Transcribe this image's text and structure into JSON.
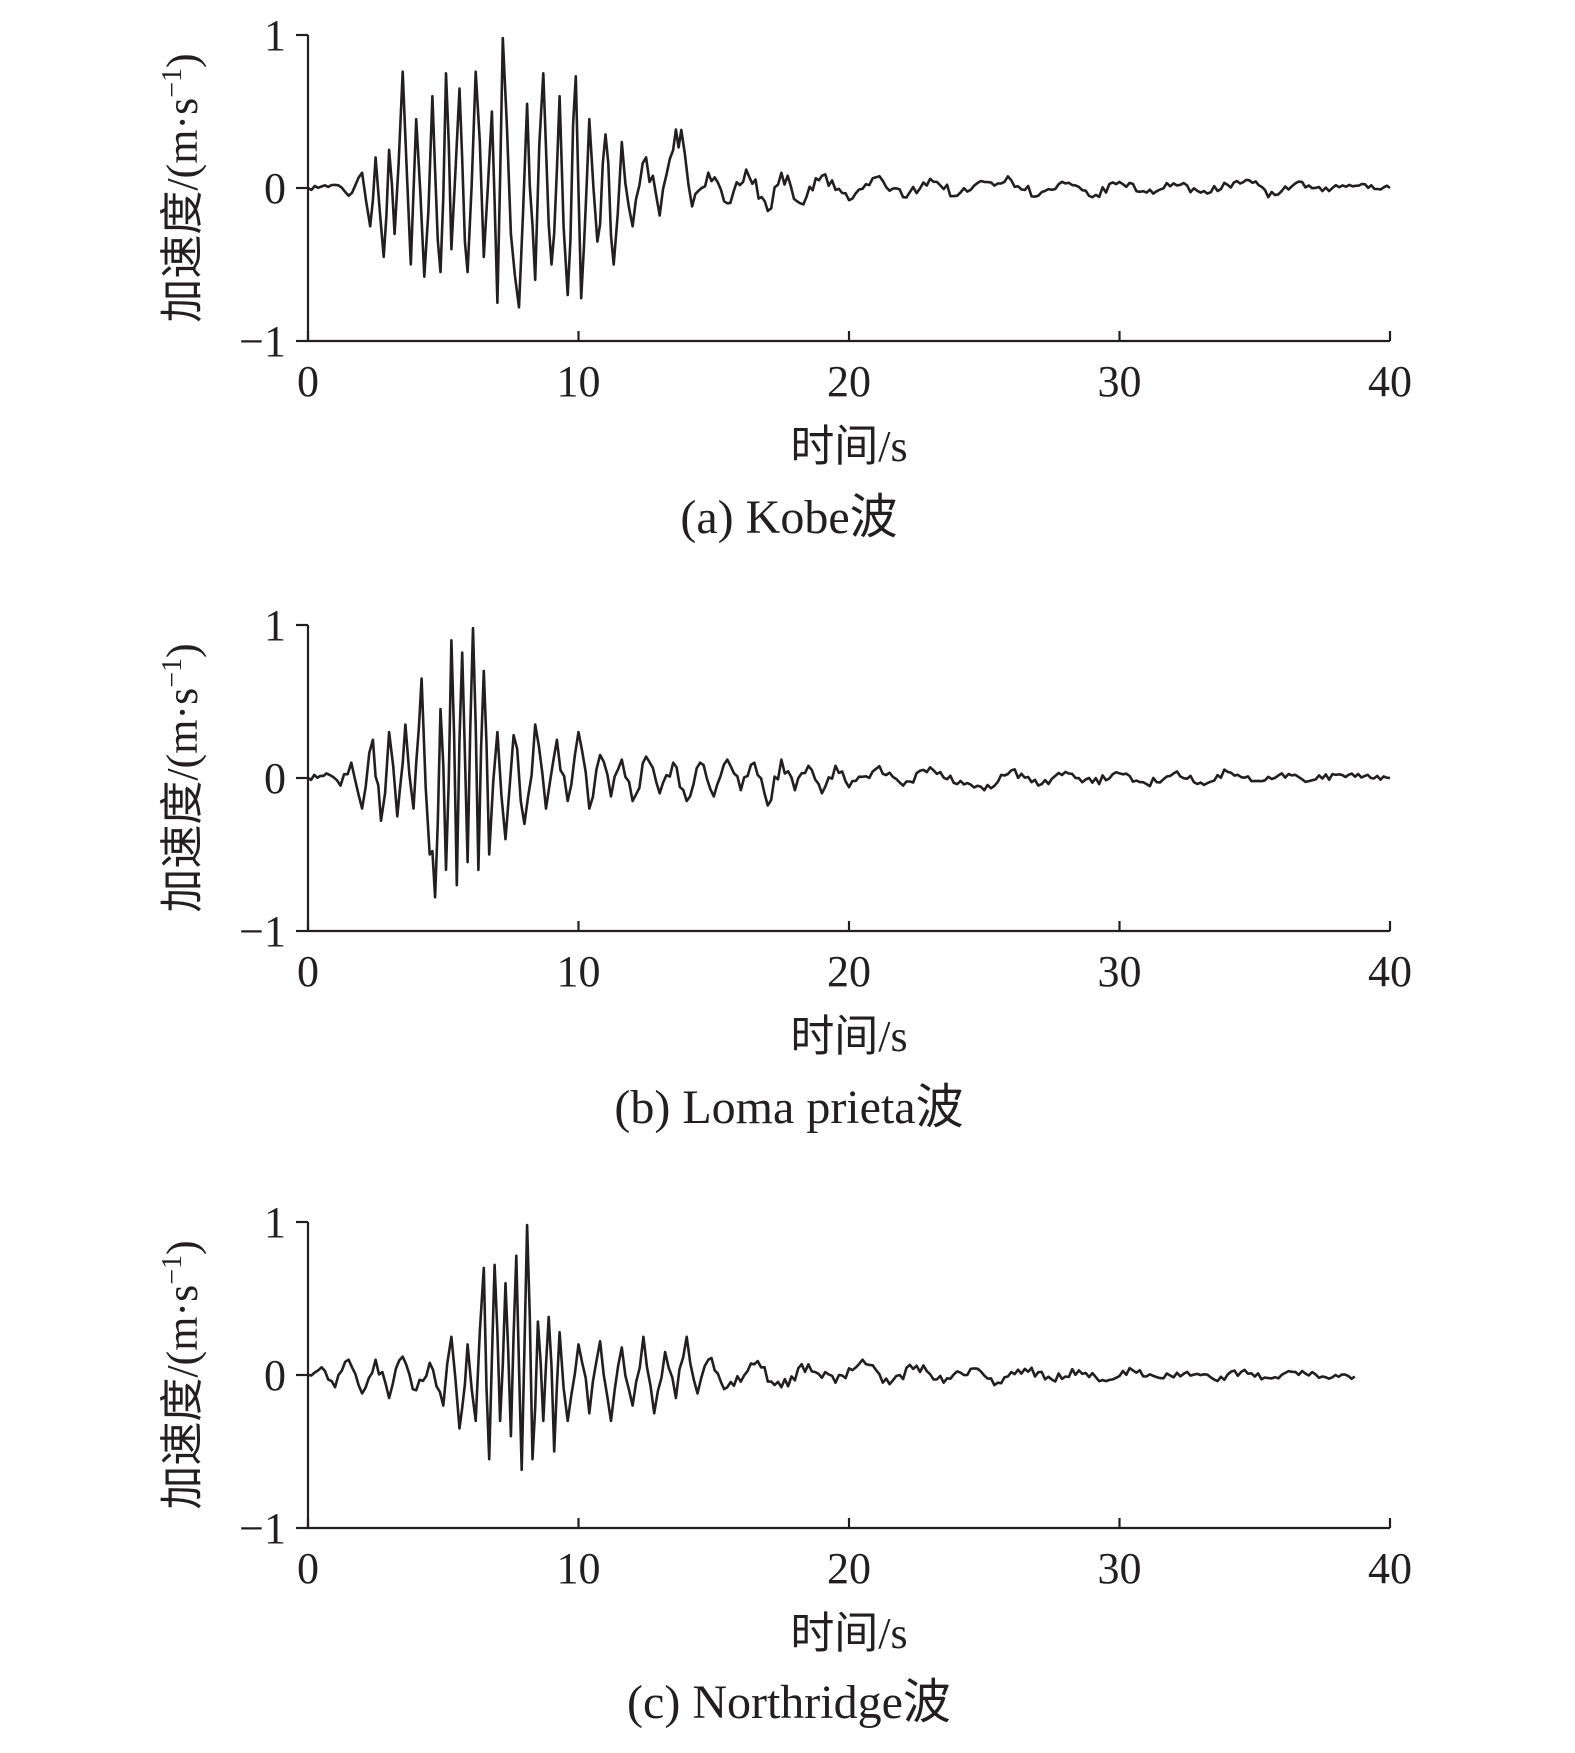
{
  "figure": {
    "panels": [
      {
        "caption": "(a) Kobe波"
      },
      {
        "caption": "(b) Loma prieta波"
      },
      {
        "caption": "(c) Northridge波"
      }
    ]
  },
  "chart_data": [
    {
      "type": "line",
      "title": "(a) Kobe波",
      "xlabel": "时间/s",
      "ylabel_main": "加速度/(m·s",
      "ylabel_sup": "−1",
      "ylabel_close": ")",
      "xlim": [
        0,
        40
      ],
      "ylim": [
        -1,
        1
      ],
      "xticks": [
        0,
        10,
        20,
        30,
        40
      ],
      "xtick_labels": [
        "0",
        "10",
        "20",
        "30",
        "40"
      ],
      "yticks": [
        -1,
        0,
        1
      ],
      "ytick_labels": [
        "−1",
        "0",
        "1"
      ],
      "grid": false,
      "series": [
        {
          "x": [
            0,
            1,
            1.5,
            2,
            2.3,
            2.5,
            2.8,
            3.0,
            3.2,
            3.5,
            3.8,
            4.0,
            4.3,
            4.6,
            4.9,
            5.1,
            5.3,
            5.6,
            5.9,
            6.2,
            6.5,
            6.8,
            7.0,
            7.2,
            7.5,
            7.8,
            8.1,
            8.4,
            8.7,
            9.0,
            9.3,
            9.6,
            9.9,
            10.1,
            10.4,
            10.7,
            11.0,
            11.3,
            11.6,
            12.0,
            12.5,
            13.0,
            13.5,
            13.8,
            14.2,
            14.8,
            15.5,
            16.2,
            17.0,
            17.5,
            18.2,
            19.0,
            20.0,
            21.0,
            22.0,
            23.0,
            24.0,
            25.0,
            26.0,
            27.0,
            28.0,
            29.0,
            30.0,
            31.0,
            32.0,
            33.0,
            34.0,
            34.8,
            35.5,
            36.5,
            37.5,
            38.5,
            40.0
          ],
          "y": [
            0,
            0.02,
            -0.05,
            0.1,
            -0.25,
            0.2,
            -0.45,
            0.25,
            -0.3,
            0.76,
            -0.5,
            0.45,
            -0.58,
            0.6,
            -0.55,
            0.75,
            -0.4,
            0.65,
            -0.55,
            0.76,
            -0.45,
            0.5,
            -0.75,
            0.98,
            -0.3,
            -0.78,
            0.55,
            -0.6,
            0.75,
            -0.5,
            0.6,
            -0.7,
            0.73,
            -0.72,
            0.45,
            -0.35,
            0.35,
            -0.5,
            0.3,
            -0.25,
            0.2,
            -0.18,
            0.25,
            0.38,
            -0.12,
            0.1,
            -0.1,
            0.12,
            -0.15,
            0.1,
            -0.1,
            0.08,
            -0.08,
            0.07,
            -0.06,
            0.06,
            -0.05,
            0.04,
            0.05,
            -0.05,
            0.03,
            -0.06,
            0.04,
            -0.03,
            0.03,
            -0.03,
            0.02,
            0.05,
            -0.06,
            0.03,
            -0.02,
            0.02,
            0
          ]
        }
      ]
    },
    {
      "type": "line",
      "title": "(b) Loma prieta波",
      "xlabel": "时间/s",
      "ylabel_main": "加速度/(m·s",
      "ylabel_sup": "−1",
      "ylabel_close": ")",
      "xlim": [
        0,
        40
      ],
      "ylim": [
        -1,
        1
      ],
      "xticks": [
        0,
        10,
        20,
        30,
        40
      ],
      "xtick_labels": [
        "0",
        "10",
        "20",
        "30",
        "40"
      ],
      "yticks": [
        -1,
        0,
        1
      ],
      "ytick_labels": [
        "−1",
        "0",
        "1"
      ],
      "grid": false,
      "series": [
        {
          "x": [
            0,
            0.8,
            1.2,
            1.6,
            2.0,
            2.4,
            2.7,
            3.0,
            3.3,
            3.6,
            3.9,
            4.2,
            4.5,
            4.7,
            4.9,
            5.1,
            5.3,
            5.5,
            5.7,
            5.9,
            6.1,
            6.3,
            6.5,
            6.7,
            7.0,
            7.3,
            7.6,
            8.0,
            8.4,
            8.8,
            9.2,
            9.6,
            10.0,
            10.4,
            10.8,
            11.2,
            11.6,
            12.0,
            12.5,
            13.0,
            13.5,
            14.0,
            14.5,
            15.0,
            15.5,
            16.0,
            16.5,
            17.0,
            17.5,
            18.0,
            18.5,
            19.0,
            19.5,
            20.0,
            21.0,
            22.0,
            23.0,
            24.0,
            25.0,
            26.0,
            27.0,
            28.0,
            29.0,
            30.0,
            31.0,
            32.0,
            33.0,
            34.0,
            35.0,
            36.0,
            37.0,
            38.0,
            40.0
          ],
          "y": [
            0,
            0.02,
            -0.05,
            0.1,
            -0.2,
            0.25,
            -0.28,
            0.3,
            -0.25,
            0.35,
            -0.2,
            0.65,
            -0.5,
            -0.78,
            0.45,
            -0.6,
            0.9,
            -0.7,
            0.82,
            -0.55,
            0.98,
            -0.6,
            0.7,
            -0.5,
            0.3,
            -0.4,
            0.28,
            -0.3,
            0.35,
            -0.2,
            0.25,
            -0.15,
            0.3,
            -0.2,
            0.15,
            -0.12,
            0.12,
            -0.15,
            0.14,
            -0.1,
            0.1,
            -0.15,
            0.1,
            -0.12,
            0.12,
            -0.08,
            0.1,
            -0.18,
            0.12,
            -0.08,
            0.08,
            -0.1,
            0.08,
            -0.06,
            0.06,
            -0.05,
            0.07,
            -0.04,
            -0.08,
            0.05,
            -0.05,
            0.04,
            -0.03,
            0.03,
            -0.04,
            0.03,
            -0.03,
            0.04,
            -0.02,
            0.03,
            -0.02,
            0.02,
            0
          ]
        }
      ]
    },
    {
      "type": "line",
      "title": "(c) Northridge波",
      "xlabel": "时间/s",
      "ylabel_main": "加速度/(m·s",
      "ylabel_sup": "−1",
      "ylabel_close": ")",
      "xlim": [
        0,
        40
      ],
      "ylim": [
        -1,
        1
      ],
      "xticks": [
        0,
        10,
        20,
        30,
        40
      ],
      "xtick_labels": [
        "0",
        "10",
        "20",
        "30",
        "40"
      ],
      "yticks": [
        -1,
        0,
        1
      ],
      "ytick_labels": [
        "−1",
        "0",
        "1"
      ],
      "grid": false,
      "series": [
        {
          "x": [
            0,
            0.5,
            1.0,
            1.5,
            2.0,
            2.5,
            3.0,
            3.5,
            4.0,
            4.5,
            5.0,
            5.3,
            5.6,
            5.9,
            6.2,
            6.5,
            6.7,
            6.9,
            7.1,
            7.3,
            7.5,
            7.7,
            7.9,
            8.1,
            8.3,
            8.5,
            8.7,
            8.9,
            9.1,
            9.3,
            9.6,
            10.0,
            10.4,
            10.8,
            11.2,
            11.6,
            12.0,
            12.4,
            12.8,
            13.2,
            13.6,
            14.0,
            14.4,
            14.8,
            15.5,
            16.5,
            17.5,
            18.5,
            19.5,
            20.5,
            21.5,
            22.5,
            23.5,
            24.5,
            25.5,
            26.5,
            27.5,
            28.5,
            29.5,
            30.5,
            31.5,
            32.5,
            33.5,
            34.5,
            35.5,
            36.5,
            37.5,
            38.7
          ],
          "y": [
            0,
            0.05,
            -0.08,
            0.1,
            -0.12,
            0.1,
            -0.15,
            0.12,
            -0.1,
            0.08,
            -0.2,
            0.25,
            -0.35,
            0.2,
            -0.3,
            0.7,
            -0.55,
            0.72,
            -0.3,
            0.6,
            -0.4,
            0.78,
            -0.62,
            0.98,
            -0.55,
            0.35,
            -0.3,
            0.38,
            -0.5,
            0.28,
            -0.3,
            0.2,
            -0.25,
            0.22,
            -0.3,
            0.18,
            -0.2,
            0.25,
            -0.25,
            0.15,
            -0.15,
            0.25,
            -0.12,
            0.1,
            -0.08,
            0.07,
            -0.08,
            0.07,
            -0.05,
            0.1,
            -0.06,
            0.06,
            -0.05,
            0.04,
            -0.05,
            0.04,
            -0.03,
            0.03,
            -0.04,
            0.03,
            -0.02,
            0.02,
            -0.03,
            0.02,
            -0.02,
            0.02,
            -0.01,
            -0.01
          ]
        }
      ]
    }
  ]
}
